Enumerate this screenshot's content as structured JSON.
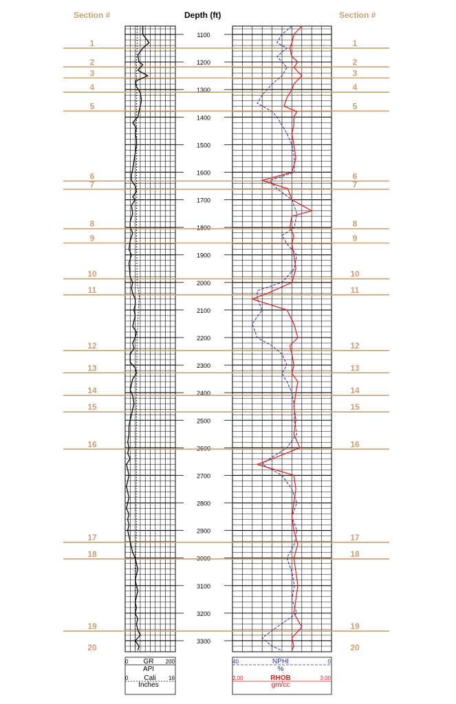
{
  "colors": {
    "section": "#c8a074",
    "grid": "#000000",
    "gr": "#000000",
    "nphi": "#2a2f8a",
    "rhob": "#e0191b"
  },
  "header": {
    "section_left": "Section #",
    "depth": "Depth (ft)",
    "section_right": "Section #"
  },
  "footer": {
    "gr_min": "0",
    "gr_label": "GR",
    "gr_max": "200",
    "gr_unit": "API",
    "cali_min": "0",
    "cali_label": "Cali",
    "cali_max": "16",
    "cali_unit": "Inches",
    "nphi_left": "40",
    "nphi_label": "NPHI",
    "nphi_right": "0",
    "nphi_unit": "%",
    "rhob_left": "2.00",
    "rhob_label": "RHOB",
    "rhob_right": "3.00",
    "rhob_unit": "gm/cc"
  },
  "chart_data": {
    "type": "line",
    "y_axis": {
      "label": "Depth (ft)",
      "range": [
        1070,
        3340
      ],
      "ticks": [
        1100,
        1200,
        1300,
        1400,
        1500,
        1600,
        1700,
        1800,
        1900,
        2000,
        2100,
        2200,
        2300,
        2400,
        2500,
        2600,
        2700,
        2800,
        2900,
        3000,
        3100,
        3200,
        3300
      ]
    },
    "sections": [
      {
        "label": "1",
        "depth": 1150
      },
      {
        "label": "2",
        "depth": 1218
      },
      {
        "label": "3",
        "depth": 1258
      },
      {
        "label": "4",
        "depth": 1310
      },
      {
        "label": "5",
        "depth": 1378
      },
      {
        "label": "6",
        "depth": 1632
      },
      {
        "label": "7",
        "depth": 1662
      },
      {
        "label": "8",
        "depth": 1805
      },
      {
        "label": "9",
        "depth": 1857
      },
      {
        "label": "10",
        "depth": 1987
      },
      {
        "label": "11",
        "depth": 2045
      },
      {
        "label": "12",
        "depth": 2247
      },
      {
        "label": "13",
        "depth": 2328
      },
      {
        "label": "14",
        "depth": 2410
      },
      {
        "label": "15",
        "depth": 2470
      },
      {
        "label": "16",
        "depth": 2605
      },
      {
        "label": "17",
        "depth": 2943
      },
      {
        "label": "18",
        "depth": 3003
      },
      {
        "label": "19",
        "depth": 3265
      },
      {
        "label": "20",
        "depth": 3345
      }
    ],
    "gr": {
      "name": "GR",
      "unit": "API",
      "range": [
        0,
        200
      ],
      "points": [
        [
          1070,
          70
        ],
        [
          1100,
          70
        ],
        [
          1130,
          95
        ],
        [
          1150,
          70
        ],
        [
          1175,
          50
        ],
        [
          1200,
          55
        ],
        [
          1210,
          70
        ],
        [
          1230,
          50
        ],
        [
          1250,
          90
        ],
        [
          1270,
          40
        ],
        [
          1290,
          45
        ],
        [
          1310,
          60
        ],
        [
          1340,
          65
        ],
        [
          1360,
          60
        ],
        [
          1380,
          55
        ],
        [
          1400,
          50
        ],
        [
          1420,
          30
        ],
        [
          1440,
          45
        ],
        [
          1460,
          40
        ],
        [
          1480,
          45
        ],
        [
          1500,
          45
        ],
        [
          1530,
          40
        ],
        [
          1560,
          35
        ],
        [
          1590,
          30
        ],
        [
          1610,
          25
        ],
        [
          1630,
          25
        ],
        [
          1650,
          40
        ],
        [
          1670,
          45
        ],
        [
          1690,
          30
        ],
        [
          1700,
          40
        ],
        [
          1720,
          25
        ],
        [
          1750,
          30
        ],
        [
          1780,
          20
        ],
        [
          1800,
          20
        ],
        [
          1820,
          30
        ],
        [
          1850,
          20
        ],
        [
          1880,
          15
        ],
        [
          1900,
          25
        ],
        [
          1930,
          15
        ],
        [
          1960,
          18
        ],
        [
          1980,
          20
        ],
        [
          2000,
          30
        ],
        [
          2020,
          25
        ],
        [
          2040,
          30
        ],
        [
          2060,
          40
        ],
        [
          2080,
          40
        ],
        [
          2100,
          35
        ],
        [
          2120,
          40
        ],
        [
          2140,
          35
        ],
        [
          2160,
          30
        ],
        [
          2180,
          45
        ],
        [
          2200,
          40
        ],
        [
          2220,
          30
        ],
        [
          2240,
          35
        ],
        [
          2260,
          20
        ],
        [
          2290,
          20
        ],
        [
          2310,
          40
        ],
        [
          2330,
          45
        ],
        [
          2350,
          30
        ],
        [
          2370,
          25
        ],
        [
          2390,
          20
        ],
        [
          2410,
          30
        ],
        [
          2440,
          35
        ],
        [
          2460,
          30
        ],
        [
          2480,
          25
        ],
        [
          2500,
          20
        ],
        [
          2520,
          15
        ],
        [
          2550,
          15
        ],
        [
          2580,
          10
        ],
        [
          2600,
          15
        ],
        [
          2620,
          10
        ],
        [
          2640,
          20
        ],
        [
          2660,
          5
        ],
        [
          2680,
          10
        ],
        [
          2700,
          15
        ],
        [
          2720,
          10
        ],
        [
          2740,
          5
        ],
        [
          2760,
          10
        ],
        [
          2780,
          15
        ],
        [
          2800,
          10
        ],
        [
          2820,
          5
        ],
        [
          2840,
          15
        ],
        [
          2860,
          10
        ],
        [
          2880,
          15
        ],
        [
          2900,
          10
        ],
        [
          2920,
          15
        ],
        [
          2940,
          20
        ],
        [
          2960,
          25
        ],
        [
          2980,
          30
        ],
        [
          3000,
          40
        ],
        [
          3020,
          45
        ],
        [
          3040,
          50
        ],
        [
          3060,
          45
        ],
        [
          3080,
          40
        ],
        [
          3100,
          45
        ],
        [
          3120,
          50
        ],
        [
          3140,
          45
        ],
        [
          3160,
          40
        ],
        [
          3180,
          45
        ],
        [
          3200,
          40
        ],
        [
          3220,
          50
        ],
        [
          3240,
          45
        ],
        [
          3260,
          50
        ],
        [
          3280,
          60
        ],
        [
          3300,
          40
        ],
        [
          3320,
          55
        ],
        [
          3335,
          50
        ]
      ]
    },
    "cali": {
      "name": "Cali",
      "unit": "Inches",
      "range": [
        0,
        16
      ],
      "points": [
        [
          1070,
          3.8
        ],
        [
          1150,
          3.8
        ],
        [
          1200,
          3.6
        ],
        [
          1300,
          3.7
        ],
        [
          1400,
          3.6
        ],
        [
          1500,
          3.7
        ],
        [
          1600,
          3.6
        ],
        [
          1700,
          3.7
        ],
        [
          1800,
          3.6
        ],
        [
          1900,
          3.7
        ],
        [
          2000,
          3.8
        ],
        [
          2050,
          4.5
        ],
        [
          2100,
          4.2
        ],
        [
          2200,
          3.8
        ],
        [
          2300,
          3.7
        ],
        [
          2400,
          3.6
        ],
        [
          2500,
          3.6
        ],
        [
          2600,
          3.5
        ],
        [
          2700,
          3.6
        ],
        [
          2800,
          3.5
        ],
        [
          2900,
          3.6
        ],
        [
          3000,
          3.4
        ],
        [
          3100,
          3.3
        ],
        [
          3200,
          3.2
        ],
        [
          3300,
          3.2
        ],
        [
          3335,
          3.2
        ]
      ]
    },
    "nphi": {
      "name": "NPHI",
      "unit": "%",
      "range": [
        40,
        0
      ],
      "points": [
        [
          1070,
          16
        ],
        [
          1100,
          20
        ],
        [
          1130,
          22
        ],
        [
          1150,
          18
        ],
        [
          1180,
          22
        ],
        [
          1200,
          20
        ],
        [
          1220,
          18
        ],
        [
          1250,
          20
        ],
        [
          1280,
          24
        ],
        [
          1300,
          26
        ],
        [
          1320,
          28
        ],
        [
          1350,
          30
        ],
        [
          1380,
          24
        ],
        [
          1400,
          22
        ],
        [
          1430,
          20
        ],
        [
          1460,
          18
        ],
        [
          1500,
          16
        ],
        [
          1550,
          15
        ],
        [
          1600,
          15
        ],
        [
          1630,
          25
        ],
        [
          1660,
          22
        ],
        [
          1700,
          16
        ],
        [
          1750,
          14
        ],
        [
          1800,
          15
        ],
        [
          1830,
          20
        ],
        [
          1860,
          18
        ],
        [
          1900,
          14
        ],
        [
          1950,
          15
        ],
        [
          2000,
          20
        ],
        [
          2030,
          30
        ],
        [
          2060,
          30
        ],
        [
          2100,
          28
        ],
        [
          2150,
          32
        ],
        [
          2200,
          30
        ],
        [
          2230,
          24
        ],
        [
          2260,
          20
        ],
        [
          2300,
          18
        ],
        [
          2330,
          20
        ],
        [
          2360,
          18
        ],
        [
          2400,
          16
        ],
        [
          2450,
          15
        ],
        [
          2500,
          15
        ],
        [
          2550,
          14
        ],
        [
          2600,
          18
        ],
        [
          2640,
          25
        ],
        [
          2660,
          28
        ],
        [
          2700,
          20
        ],
        [
          2750,
          16
        ],
        [
          2800,
          14
        ],
        [
          2850,
          16
        ],
        [
          2900,
          14
        ],
        [
          2950,
          15
        ],
        [
          3000,
          18
        ],
        [
          3050,
          16
        ],
        [
          3100,
          15
        ],
        [
          3150,
          16
        ],
        [
          3200,
          14
        ],
        [
          3250,
          22
        ],
        [
          3290,
          28
        ],
        [
          3320,
          24
        ],
        [
          3335,
          20
        ]
      ]
    },
    "rhob": {
      "name": "RHOB",
      "unit": "gm/cc",
      "range": [
        2.0,
        3.0
      ],
      "points": [
        [
          1070,
          2.7
        ],
        [
          1100,
          2.62
        ],
        [
          1130,
          2.6
        ],
        [
          1150,
          2.58
        ],
        [
          1180,
          2.6
        ],
        [
          1200,
          2.66
        ],
        [
          1220,
          2.62
        ],
        [
          1250,
          2.7
        ],
        [
          1280,
          2.62
        ],
        [
          1300,
          2.6
        ],
        [
          1330,
          2.55
        ],
        [
          1360,
          2.52
        ],
        [
          1380,
          2.65
        ],
        [
          1400,
          2.62
        ],
        [
          1430,
          2.62
        ],
        [
          1460,
          2.6
        ],
        [
          1500,
          2.62
        ],
        [
          1550,
          2.64
        ],
        [
          1600,
          2.6
        ],
        [
          1630,
          2.3
        ],
        [
          1660,
          2.56
        ],
        [
          1700,
          2.6
        ],
        [
          1740,
          2.8
        ],
        [
          1760,
          2.6
        ],
        [
          1800,
          2.58
        ],
        [
          1830,
          2.62
        ],
        [
          1860,
          2.6
        ],
        [
          1900,
          2.62
        ],
        [
          1950,
          2.64
        ],
        [
          2000,
          2.6
        ],
        [
          2040,
          2.35
        ],
        [
          2060,
          2.2
        ],
        [
          2100,
          2.55
        ],
        [
          2150,
          2.62
        ],
        [
          2200,
          2.66
        ],
        [
          2230,
          2.58
        ],
        [
          2260,
          2.6
        ],
        [
          2300,
          2.62
        ],
        [
          2330,
          2.6
        ],
        [
          2360,
          2.66
        ],
        [
          2400,
          2.64
        ],
        [
          2450,
          2.62
        ],
        [
          2500,
          2.64
        ],
        [
          2550,
          2.62
        ],
        [
          2600,
          2.68
        ],
        [
          2640,
          2.4
        ],
        [
          2660,
          2.25
        ],
        [
          2700,
          2.62
        ],
        [
          2750,
          2.64
        ],
        [
          2800,
          2.62
        ],
        [
          2850,
          2.6
        ],
        [
          2900,
          2.62
        ],
        [
          2950,
          2.66
        ],
        [
          3000,
          2.62
        ],
        [
          3050,
          2.64
        ],
        [
          3100,
          2.66
        ],
        [
          3150,
          2.64
        ],
        [
          3200,
          2.62
        ],
        [
          3250,
          2.7
        ],
        [
          3290,
          2.6
        ],
        [
          3320,
          2.62
        ],
        [
          3335,
          2.6
        ]
      ]
    }
  }
}
